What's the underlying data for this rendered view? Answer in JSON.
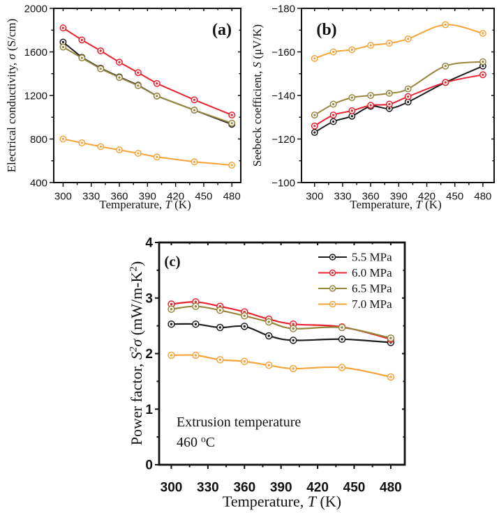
{
  "figure": {
    "background": "#ffffff",
    "description_visible_panels": [
      "(a)",
      "(b)",
      "(c)"
    ]
  },
  "chart_data": [
    {
      "id": "a",
      "type": "line",
      "panel_label": "(a)",
      "xlabel": "Temperature, T (K)",
      "xlabel_segments": [
        {
          "t": "Temperature, "
        },
        {
          "t": "T",
          "i": 1
        },
        {
          "t": " (K)"
        }
      ],
      "ylabel": "Electrical conductivity, σ (S/cm)",
      "ylabel_segments": [
        {
          "t": "Electrical conductivity, "
        },
        {
          "t": "σ",
          "i": 1
        },
        {
          "t": " (S/cm)"
        }
      ],
      "x": [
        300,
        320,
        340,
        360,
        380,
        400,
        440,
        480
      ],
      "series": [
        {
          "name": "5.5 MPa",
          "color": "#1c1c1c",
          "values": [
            1690,
            1550,
            1450,
            1370,
            1295,
            1195,
            1065,
            935
          ]
        },
        {
          "name": "6.0 MPa",
          "color": "#e8212e",
          "values": [
            1820,
            1710,
            1610,
            1505,
            1410,
            1310,
            1160,
            1020
          ]
        },
        {
          "name": "6.5 MPa",
          "color": "#97853e",
          "values": [
            1645,
            1545,
            1445,
            1365,
            1290,
            1195,
            1065,
            945
          ]
        },
        {
          "name": "7.0 MPa",
          "color": "#f7a339",
          "values": [
            800,
            765,
            730,
            700,
            668,
            635,
            590,
            560
          ]
        }
      ],
      "xlim": [
        290,
        489.5
      ],
      "ylim": [
        400,
        2000
      ],
      "x_major_ticks": [
        300,
        330,
        360,
        390,
        420,
        450,
        480
      ],
      "x_major_labels": [
        "300",
        "330",
        "360",
        "390",
        "420",
        "450",
        "480"
      ],
      "x_minor_ticks": [
        315,
        345,
        375,
        405,
        435,
        465
      ],
      "y_major_ticks": [
        400,
        800,
        1200,
        1600,
        2000
      ],
      "y_major_labels": [
        "400",
        "800",
        "1200",
        "1600",
        "2000"
      ],
      "y_minor_ticks": [
        600,
        1000,
        1400,
        1800
      ],
      "smooth": false,
      "legend": null,
      "annotation": null
    },
    {
      "id": "b",
      "type": "line",
      "panel_label": "(b)",
      "xlabel": "Temperature, T (K)",
      "xlabel_segments": [
        {
          "t": "Temperature, "
        },
        {
          "t": "T",
          "i": 1
        },
        {
          "t": " (K)"
        }
      ],
      "ylabel": "Seebeck coefficient, S (μV/K)",
      "ylabel_segments": [
        {
          "t": "Seebeck coefficient, "
        },
        {
          "t": "S",
          "i": 1
        },
        {
          "t": " (μV/K)"
        }
      ],
      "x": [
        300,
        320,
        340,
        360,
        380,
        400,
        440,
        480
      ],
      "series": [
        {
          "name": "5.5 MPa",
          "color": "#1c1c1c",
          "values": [
            -123,
            -128,
            -130.5,
            -135,
            -134,
            -137,
            -146,
            -153.5
          ]
        },
        {
          "name": "6.0 MPa",
          "color": "#e8212e",
          "values": [
            -126,
            -131,
            -133,
            -135.5,
            -136,
            -139.5,
            -146,
            -149.5
          ]
        },
        {
          "name": "6.5 MPa",
          "color": "#97853e",
          "values": [
            -131,
            -136,
            -139,
            -140,
            -141,
            -143,
            -153.5,
            -155.5
          ]
        },
        {
          "name": "7.0 MPa",
          "color": "#f7a339",
          "values": [
            -157,
            -160,
            -161,
            -163,
            -164,
            -166,
            -172.5,
            -168.5
          ]
        }
      ],
      "xlim": [
        286,
        492
      ],
      "ylim": [
        -100,
        -180
      ],
      "x_major_ticks": [
        300,
        330,
        360,
        390,
        420,
        450,
        480
      ],
      "x_major_labels": [
        "300",
        "330",
        "360",
        "390",
        "420",
        "450",
        "480"
      ],
      "x_minor_ticks": [
        315,
        345,
        375,
        405,
        435,
        465
      ],
      "y_major_ticks": [
        -100,
        -120,
        -140,
        -160,
        -180
      ],
      "y_major_labels": [
        "−100",
        "−120",
        "−140",
        "−160",
        "−180"
      ],
      "y_minor_ticks": [
        -110,
        -130,
        -150,
        -170
      ],
      "smooth": true,
      "legend": null,
      "annotation": null
    },
    {
      "id": "c",
      "type": "line",
      "panel_label": "(c)",
      "xlabel": "Temperature, T (K)",
      "xlabel_segments": [
        {
          "t": "Temperature, "
        },
        {
          "t": "T",
          "i": 1
        },
        {
          "t": " (K)"
        }
      ],
      "ylabel": "Power factor, S²σ (mW/m-K²)",
      "ylabel_segments": [
        {
          "t": "Power factor, "
        },
        {
          "t": "S",
          "i": 1
        },
        {
          "t": "2",
          "i": 1,
          "sup": 1
        },
        {
          "t": "σ",
          "i": 1
        },
        {
          "t": " (mW/m-K"
        },
        {
          "t": "2",
          "sup": 1
        },
        {
          "t": ")"
        }
      ],
      "x": [
        300,
        320,
        340,
        360,
        380,
        400,
        440,
        480
      ],
      "series": [
        {
          "name": "5.5 MPa",
          "color": "#1c1c1c",
          "values": [
            2.53,
            2.53,
            2.47,
            2.49,
            2.32,
            2.24,
            2.26,
            2.2
          ]
        },
        {
          "name": "6.0 MPa",
          "color": "#e8212e",
          "values": [
            2.89,
            2.93,
            2.85,
            2.75,
            2.62,
            2.53,
            2.48,
            2.26
          ]
        },
        {
          "name": "6.5 MPa",
          "color": "#97853e",
          "values": [
            2.8,
            2.85,
            2.78,
            2.68,
            2.57,
            2.45,
            2.47,
            2.28
          ]
        },
        {
          "name": "7.0 MPa",
          "color": "#f7a339",
          "values": [
            1.97,
            1.97,
            1.89,
            1.86,
            1.79,
            1.73,
            1.75,
            1.58
          ]
        }
      ],
      "xlim": [
        290,
        491.5
      ],
      "ylim": [
        0,
        4
      ],
      "x_major_ticks": [
        300,
        330,
        360,
        390,
        420,
        450,
        480
      ],
      "x_major_labels": [
        "300",
        "330",
        "360",
        "390",
        "420",
        "450",
        "480"
      ],
      "x_minor_ticks": [
        315,
        345,
        375,
        405,
        435,
        465
      ],
      "y_major_ticks": [
        0,
        1,
        2,
        3,
        4
      ],
      "y_major_labels": [
        "0",
        "1",
        "2",
        "3",
        "4"
      ],
      "y_minor_ticks": [
        0.5,
        1.5,
        2.5,
        3.5
      ],
      "smooth": true,
      "legend": {
        "position": "top-right",
        "items": [
          "5.5 MPa",
          "6.0 MPa",
          "6.5 MPa",
          "7.0 MPa"
        ]
      },
      "annotation": {
        "text": "Extrusion temperature 460 °C",
        "lines": [
          [
            {
              "t": "Extrusion temperature"
            }
          ],
          [
            {
              "t": "460 "
            },
            {
              "t": "o",
              "sup": 1
            },
            {
              "t": "C"
            }
          ]
        ]
      }
    }
  ]
}
